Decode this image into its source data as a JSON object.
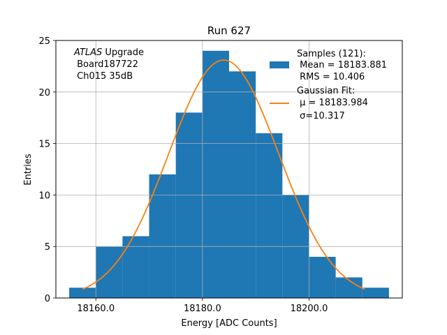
{
  "chart_data": {
    "type": "bar",
    "title": "Run 627",
    "xlabel": "Energy [ADC Counts]",
    "ylabel": "Entries",
    "xlim": [
      18152.5,
      18217.5
    ],
    "ylim": [
      0,
      25
    ],
    "grid": true,
    "x_ticks": [
      18160,
      18180,
      18200
    ],
    "x_tick_labels": [
      "18160.0",
      "18180.0",
      "18200.0"
    ],
    "y_ticks": [
      0,
      5,
      10,
      15,
      20,
      25
    ],
    "y_tick_labels": [
      "0",
      "5",
      "10",
      "15",
      "20",
      "25"
    ],
    "bins": [
      {
        "left": 18155.0,
        "right": 18160.0,
        "value": 1
      },
      {
        "left": 18160.0,
        "right": 18165.0,
        "value": 5
      },
      {
        "left": 18165.0,
        "right": 18170.0,
        "value": 6
      },
      {
        "left": 18170.0,
        "right": 18175.0,
        "value": 12
      },
      {
        "left": 18175.0,
        "right": 18180.0,
        "value": 18
      },
      {
        "left": 18180.0,
        "right": 18185.0,
        "value": 24
      },
      {
        "left": 18185.0,
        "right": 18190.0,
        "value": 22
      },
      {
        "left": 18190.0,
        "right": 18195.0,
        "value": 16
      },
      {
        "left": 18195.0,
        "right": 18200.0,
        "value": 10
      },
      {
        "left": 18200.0,
        "right": 18205.0,
        "value": 4
      },
      {
        "left": 18205.0,
        "right": 18210.0,
        "value": 2
      },
      {
        "left": 18210.0,
        "right": 18215.0,
        "value": 1
      }
    ],
    "fit": {
      "type": "gaussian",
      "mu": 18183.984,
      "sigma": 10.317,
      "amplitude": 23.1,
      "x_range": [
        18157.5,
        18210.5
      ]
    },
    "series": [
      {
        "name": "Samples",
        "type": "histogram",
        "color": "#1f77b4"
      },
      {
        "name": "Gaussian Fit",
        "type": "line",
        "color": "#ff7f0e"
      }
    ],
    "legend": {
      "position": "top-right",
      "samples_lines": [
        "Samples (121):",
        " Mean = 18183.881",
        " RMS = 10.406"
      ],
      "fit_lines": [
        "Gaussian Fit:",
        " μ = 18183.984",
        " σ=10.317"
      ]
    },
    "annotation": {
      "position": "top-left",
      "atlas": "ATLAS",
      "upgrade": " Upgrade",
      "lines": [
        " Board187722",
        " Ch015 35dB"
      ]
    }
  }
}
